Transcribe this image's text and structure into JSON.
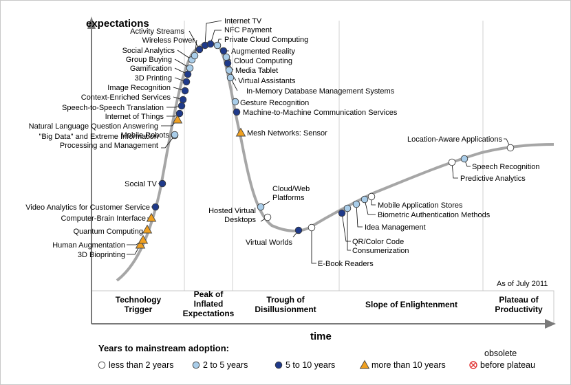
{
  "chart_data": {
    "type": "scatter",
    "ylabel": "expectations",
    "xlabel": "time",
    "as_of": "As of July 2011",
    "phases": [
      {
        "name_lines": [
          "Technology",
          "Trigger"
        ]
      },
      {
        "name_lines": [
          "Peak of",
          "Inflated",
          "Expectations"
        ]
      },
      {
        "name_lines": [
          "Trough of",
          "Disillusionment"
        ]
      },
      {
        "name_lines": [
          "Slope of Enlightenment"
        ]
      },
      {
        "name_lines": [
          "Plateau of",
          "Productivity"
        ]
      }
    ],
    "legend": {
      "title": "Years to mainstream adoption:",
      "items": [
        {
          "key": "lt2",
          "label": "less than 2 years",
          "color": "#ffffff"
        },
        {
          "key": "2to5",
          "label": "2 to 5 years",
          "color": "#a9cde9"
        },
        {
          "key": "5to10",
          "label": "5 to 10 years",
          "color": "#1f3a8a"
        },
        {
          "key": "gt10",
          "label": "more than 10 years",
          "color": "#f0a020"
        },
        {
          "key": "obsolete",
          "label": "before plateau",
          "label_top": "obsolete",
          "color": "#e03030"
        }
      ]
    },
    "technologies": [
      {
        "name": "3D Bioprinting",
        "adoption": "gt10"
      },
      {
        "name": "Human Augmentation",
        "adoption": "gt10"
      },
      {
        "name": "Quantum Computing",
        "adoption": "gt10"
      },
      {
        "name": "Computer-Brain Interface",
        "adoption": "gt10"
      },
      {
        "name": "Video Analytics for Customer Service",
        "adoption": "5to10"
      },
      {
        "name": "Social TV",
        "adoption": "5to10"
      },
      {
        "name": "\"Big Data\" and Extreme Information|Processing and Management",
        "adoption": "2to5"
      },
      {
        "name": "Mobile Robots",
        "adoption": "2to5"
      },
      {
        "name": "Natural Language Question Answering",
        "adoption": "gt10"
      },
      {
        "name": "Internet of Things",
        "adoption": "5to10"
      },
      {
        "name": "Speech-to-Speech Translation",
        "adoption": "5to10"
      },
      {
        "name": "Context-Enriched Services",
        "adoption": "5to10"
      },
      {
        "name": "Image Recognition",
        "adoption": "5to10"
      },
      {
        "name": "3D Printing",
        "adoption": "5to10"
      },
      {
        "name": "Gamification",
        "adoption": "5to10"
      },
      {
        "name": "Group Buying",
        "adoption": "2to5"
      },
      {
        "name": "Social Analytics",
        "adoption": "2to5"
      },
      {
        "name": "Wireless Power",
        "adoption": "2to5"
      },
      {
        "name": "Activity Streams",
        "adoption": "5to10"
      },
      {
        "name": "Internet TV",
        "adoption": "5to10"
      },
      {
        "name": "NFC Payment",
        "adoption": "5to10"
      },
      {
        "name": "Private Cloud Computing",
        "adoption": "2to5"
      },
      {
        "name": "Augmented Reality",
        "adoption": "5to10"
      },
      {
        "name": "Cloud Computing",
        "adoption": "2to5"
      },
      {
        "name": "Media Tablet",
        "adoption": "5to10"
      },
      {
        "name": "Virtual Assistants",
        "adoption": "2to5"
      },
      {
        "name": "In-Memory Database Management Systems",
        "adoption": "2to5"
      },
      {
        "name": "Gesture Recognition",
        "adoption": "2to5"
      },
      {
        "name": "Machine-to-Machine Communication Services",
        "adoption": "5to10"
      },
      {
        "name": "Mesh Networks: Sensor",
        "adoption": "gt10"
      },
      {
        "name": "Cloud/Web|Platforms",
        "adoption": "2to5"
      },
      {
        "name": "Hosted Virtual|Desktops",
        "adoption": "lt2"
      },
      {
        "name": "Virtual Worlds",
        "adoption": "5to10"
      },
      {
        "name": "E-Book Readers",
        "adoption": "lt2"
      },
      {
        "name": "QR/Color Code",
        "adoption": "5to10"
      },
      {
        "name": "Consumerization",
        "adoption": "2to5"
      },
      {
        "name": "Idea Management",
        "adoption": "2to5"
      },
      {
        "name": "Biometric Authentication Methods",
        "adoption": "2to5"
      },
      {
        "name": "Mobile Application Stores",
        "adoption": "lt2"
      },
      {
        "name": "Predictive Analytics",
        "adoption": "lt2"
      },
      {
        "name": "Speech Recognition",
        "adoption": "2to5"
      },
      {
        "name": "Location-Aware Applications",
        "adoption": "lt2"
      }
    ]
  }
}
